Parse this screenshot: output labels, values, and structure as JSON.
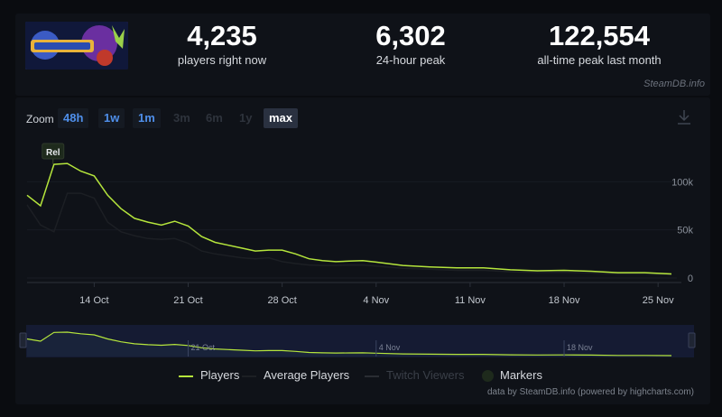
{
  "stats": {
    "current": {
      "value": "4,235",
      "label": "players right now"
    },
    "peak24": {
      "value": "6,302",
      "label": "24-hour peak"
    },
    "alltime": {
      "value": "122,554",
      "label": "all-time peak last month"
    }
  },
  "watermark": "SteamDB.info",
  "zoom": {
    "label": "Zoom",
    "buttons": [
      {
        "label": "48h",
        "state": "enabled"
      },
      {
        "label": "1w",
        "state": "enabled"
      },
      {
        "label": "1m",
        "state": "enabled"
      },
      {
        "label": "3m",
        "state": "disabled"
      },
      {
        "label": "6m",
        "state": "disabled"
      },
      {
        "label": "1y",
        "state": "disabled"
      },
      {
        "label": "max",
        "state": "selected"
      }
    ]
  },
  "legend": {
    "players": "Players",
    "average": "Average Players",
    "twitch": "Twitch Viewers",
    "markers": "Markers"
  },
  "credits": "data by SteamDB.info (powered by highcharts.com)",
  "colors": {
    "players_line": "#b5e53c",
    "average_line": "#1c1f24",
    "background": "#0a0c10",
    "panel": "#0f1218",
    "accent_blue": "#4f8fea"
  },
  "chart_data": {
    "type": "line",
    "x_type": "date",
    "x_tick_labels": [
      "14 Oct",
      "21 Oct",
      "28 Oct",
      "4 Nov",
      "11 Nov",
      "18 Nov",
      "25 Nov"
    ],
    "y_tick_labels": [
      "0",
      "50k",
      "100k"
    ],
    "ylim": [
      0,
      150000
    ],
    "navigator_tick_labels": [
      "21 Oct",
      "4 Nov",
      "18 Nov"
    ],
    "flag": {
      "label": "Rel",
      "x": "2024-10-11"
    },
    "series": [
      {
        "name": "Players",
        "x": [
          "2024-10-09",
          "2024-10-10",
          "2024-10-11",
          "2024-10-12",
          "2024-10-13",
          "2024-10-14",
          "2024-10-15",
          "2024-10-16",
          "2024-10-17",
          "2024-10-18",
          "2024-10-19",
          "2024-10-20",
          "2024-10-21",
          "2024-10-22",
          "2024-10-23",
          "2024-10-24",
          "2024-10-25",
          "2024-10-26",
          "2024-10-27",
          "2024-10-28",
          "2024-10-29",
          "2024-10-30",
          "2024-10-31",
          "2024-11-01",
          "2024-11-02",
          "2024-11-03",
          "2024-11-04",
          "2024-11-06",
          "2024-11-08",
          "2024-11-10",
          "2024-11-12",
          "2024-11-14",
          "2024-11-16",
          "2024-11-18",
          "2024-11-20",
          "2024-11-22",
          "2024-11-24",
          "2024-11-26"
        ],
        "values": [
          86000,
          75000,
          118000,
          119000,
          111000,
          106000,
          86000,
          72000,
          62000,
          58000,
          55000,
          59000,
          54000,
          43000,
          37000,
          34000,
          31000,
          28000,
          29000,
          29000,
          25000,
          20000,
          18000,
          17000,
          17500,
          18000,
          16500,
          13000,
          11500,
          10500,
          10500,
          8500,
          7500,
          8000,
          7000,
          5500,
          5500,
          4235
        ]
      },
      {
        "name": "Average Players",
        "x": [
          "2024-10-09",
          "2024-10-10",
          "2024-10-11",
          "2024-10-12",
          "2024-10-13",
          "2024-10-14",
          "2024-10-15",
          "2024-10-16",
          "2024-10-17",
          "2024-10-18",
          "2024-10-19",
          "2024-10-20",
          "2024-10-21",
          "2024-10-22",
          "2024-10-23",
          "2024-10-24",
          "2024-10-25",
          "2024-10-26",
          "2024-10-27",
          "2024-10-28",
          "2024-10-29",
          "2024-10-30",
          "2024-10-31",
          "2024-11-01",
          "2024-11-02",
          "2024-11-03",
          "2024-11-04",
          "2024-11-06",
          "2024-11-08",
          "2024-11-10",
          "2024-11-12",
          "2024-11-14",
          "2024-11-16",
          "2024-11-18",
          "2024-11-20",
          "2024-11-22",
          "2024-11-24",
          "2024-11-26"
        ],
        "values": [
          76000,
          55000,
          48000,
          88000,
          88000,
          83000,
          58000,
          48000,
          44000,
          41000,
          40000,
          41000,
          36000,
          28000,
          25000,
          23000,
          21000,
          20000,
          21000,
          17000,
          15000,
          13500,
          13000,
          13000,
          13500,
          13500,
          12500,
          10000,
          9000,
          8000,
          8000,
          6500,
          5700,
          6000,
          5300,
          4200,
          4200,
          3300
        ]
      }
    ]
  }
}
